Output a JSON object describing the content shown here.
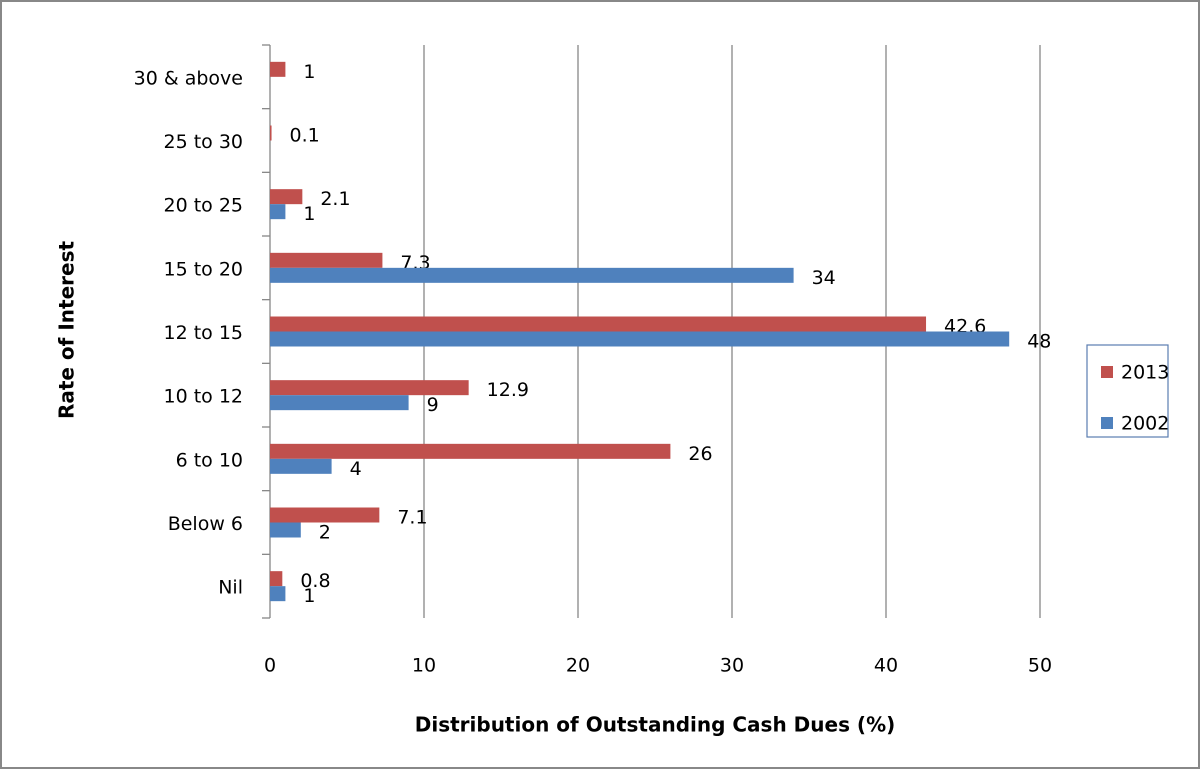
{
  "chart_data": {
    "type": "bar",
    "orientation": "horizontal",
    "x_axis_label": "Distribution of Outstanding Cash Dues (%)",
    "y_axis_label": "Rate of Interest",
    "categories": [
      "Nil",
      "Below 6",
      "6 to 10",
      "10 to 12",
      "12 to 15",
      "15 to 20",
      "20 to 25",
      "25 to 30",
      "30 & above"
    ],
    "series": [
      {
        "name": "2013",
        "color": "#c0504d",
        "values": [
          0.8,
          7.1,
          26,
          12.9,
          42.6,
          7.3,
          2.1,
          0.1,
          1
        ]
      },
      {
        "name": "2002",
        "color": "#4f81bd",
        "values": [
          1,
          2,
          4,
          9,
          48,
          34,
          1,
          null,
          null
        ]
      }
    ],
    "xlim": [
      0,
      50
    ],
    "xticks": [
      0,
      10,
      20,
      30,
      40,
      50
    ],
    "grid": true,
    "legend": "right"
  }
}
